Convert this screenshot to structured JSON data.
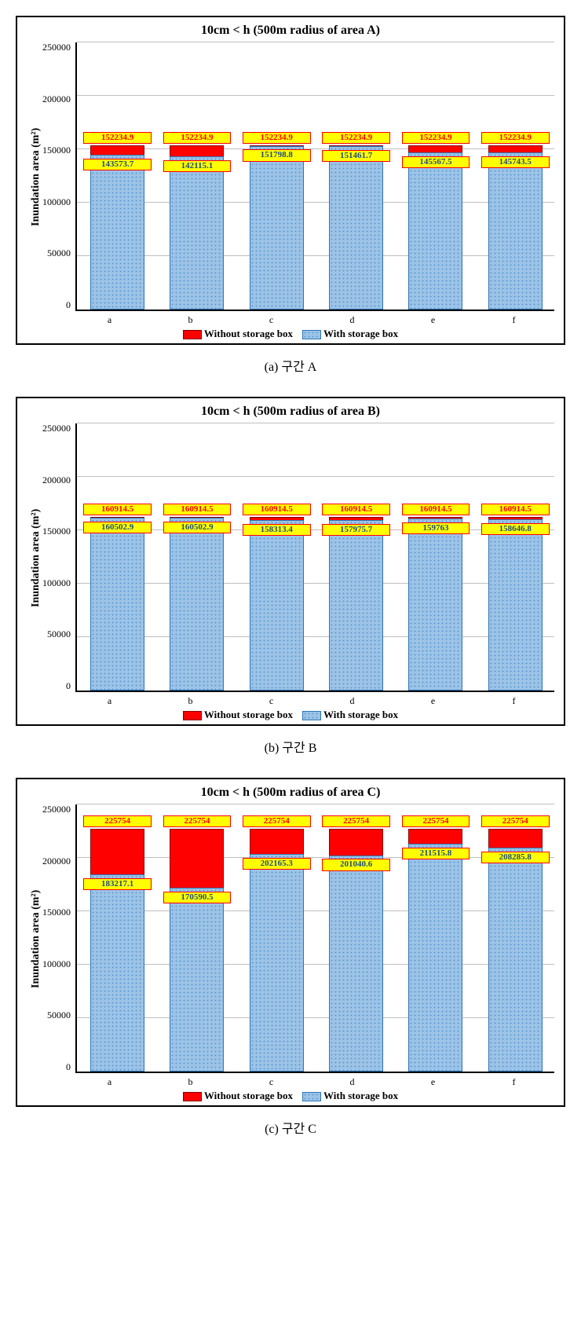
{
  "colors": {
    "without_fill": "#ff0000",
    "without_border": "#880000",
    "with_fill": "#9dc3e6",
    "with_dot": "#5b9bd5",
    "with_border": "#2e75b6",
    "label_bg": "#ffff00",
    "label_border": "#ff0000",
    "grid": "#bfbfbf"
  },
  "common": {
    "y_label": "Inundation area (m²)",
    "y_ticks": [
      0,
      50000,
      100000,
      150000,
      200000,
      250000
    ],
    "ymax": 250000,
    "categories": [
      "a",
      "b",
      "c",
      "d",
      "e",
      "f"
    ],
    "legend_without": "Without storage box",
    "legend_with": "With storage box",
    "bar_width": 0.76,
    "title_fontsize": 16,
    "label_fontsize": 11
  },
  "charts": [
    {
      "id": "A",
      "title": "10cm < h (500m radius of area A)",
      "caption": "(a) 구간 A",
      "without": [
        152234.9,
        152234.9,
        152234.9,
        152234.9,
        152234.9,
        152234.9
      ],
      "with": [
        143573.7,
        142115.1,
        151798.8,
        151461.7,
        145567.5,
        145743.5
      ]
    },
    {
      "id": "B",
      "title": "10cm < h (500m radius of area B)",
      "caption": "(b) 구간 B",
      "without": [
        160914.5,
        160914.5,
        160914.5,
        160914.5,
        160914.5,
        160914.5
      ],
      "with": [
        160502.9,
        160502.9,
        158313.4,
        157975.7,
        159763.0,
        158646.8
      ]
    },
    {
      "id": "C",
      "title": "10cm < h (500m radius of area C)",
      "caption": "(c) 구간 C",
      "without": [
        225754,
        225754,
        225754,
        225754,
        225754,
        225754
      ],
      "with": [
        183217.1,
        170590.5,
        202165.3,
        201040.6,
        211515.8,
        208285.8
      ]
    }
  ]
}
